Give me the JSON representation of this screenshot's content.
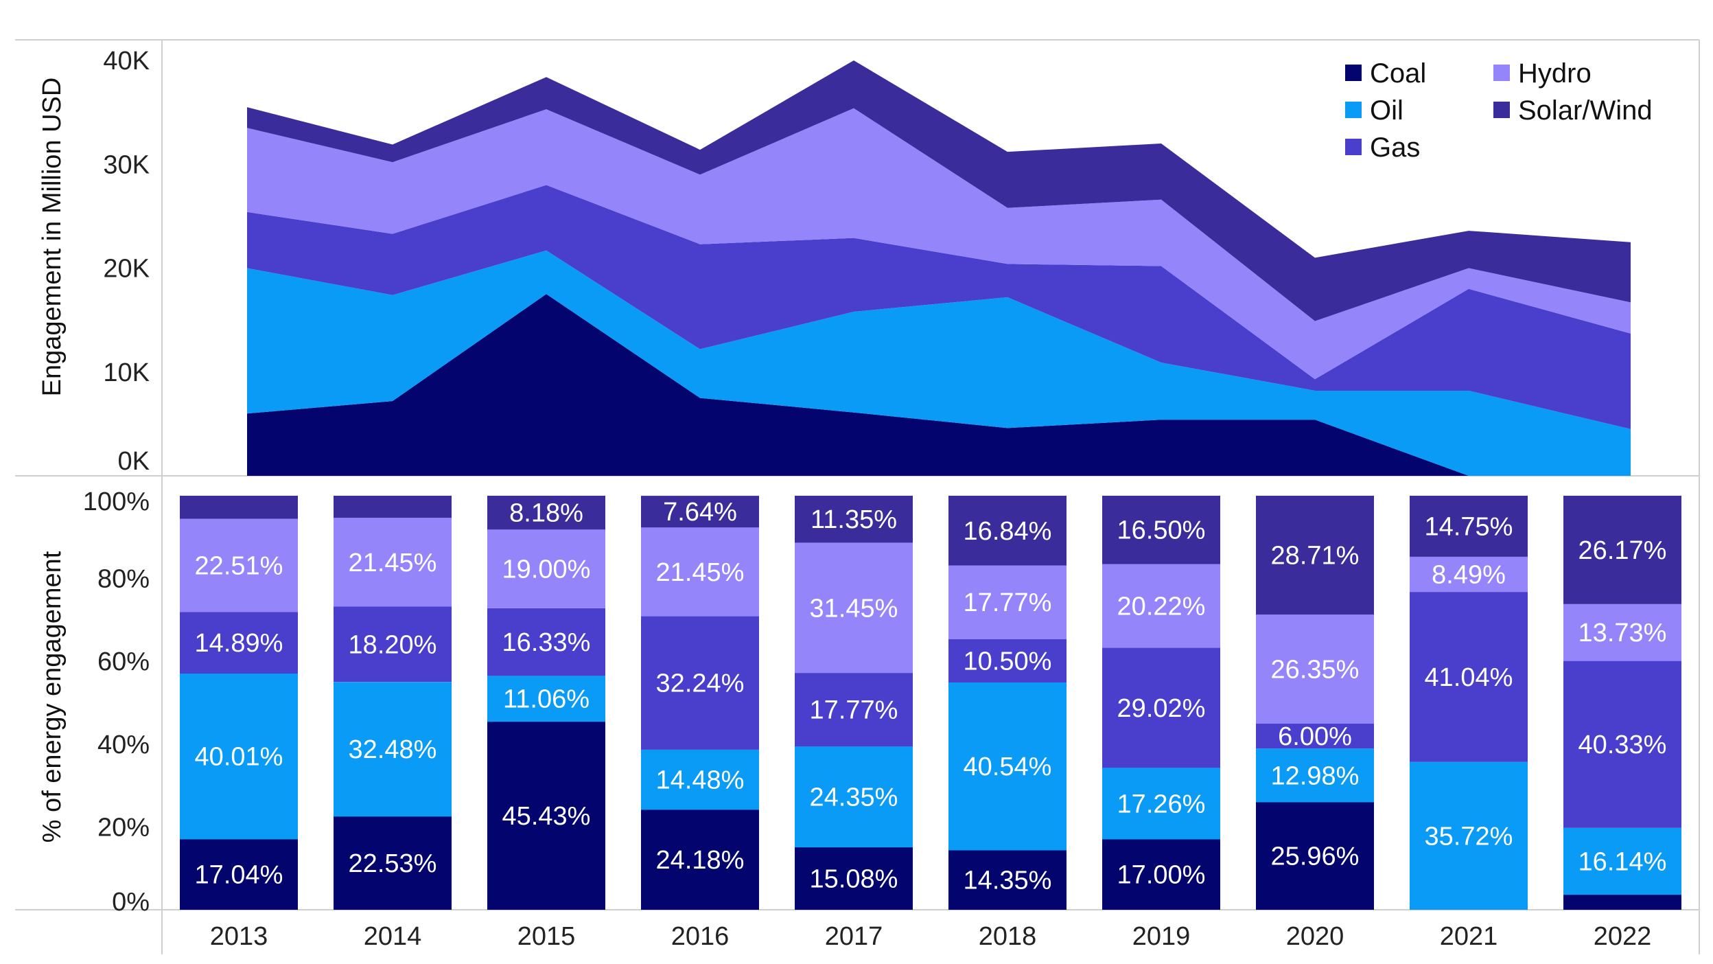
{
  "chart_data": [
    {
      "type": "area",
      "stacked": true,
      "ylabel": "Engagement in Million USD",
      "yticks": [
        "0K",
        "10K",
        "20K",
        "30K",
        "40K"
      ],
      "ylim": [
        0,
        40000
      ],
      "x": [
        "2013",
        "2014",
        "2015",
        "2016",
        "2017",
        "2018",
        "2019",
        "2020",
        "2021",
        "2022"
      ],
      "series": [
        {
          "name": "Coal",
          "values": [
            6000,
            7200,
            17500,
            7500,
            6100,
            4600,
            5400,
            5400,
            0,
            0
          ]
        },
        {
          "name": "Oil",
          "values": [
            14000,
            10200,
            4200,
            4700,
            9700,
            12600,
            5500,
            2800,
            8200,
            4500
          ]
        },
        {
          "name": "Gas",
          "values": [
            5400,
            5900,
            6300,
            10100,
            7100,
            3200,
            9300,
            1100,
            9800,
            9200
          ]
        },
        {
          "name": "Hydro",
          "values": [
            8100,
            6900,
            7300,
            6700,
            12500,
            5400,
            6400,
            5600,
            2000,
            3000
          ]
        },
        {
          "name": "Solar/Wind",
          "values": [
            2000,
            1700,
            3100,
            2400,
            4600,
            5400,
            5400,
            6100,
            3600,
            5800
          ]
        }
      ],
      "legend": {
        "position": "top-right",
        "entries": [
          "Coal",
          "Oil",
          "Gas",
          "Hydro",
          "Solar/Wind"
        ]
      }
    },
    {
      "type": "bar",
      "stacked": true,
      "ylabel": "% of energy engagement",
      "yticks": [
        "0%",
        "20%",
        "40%",
        "60%",
        "80%",
        "100%"
      ],
      "ylim": [
        0,
        100
      ],
      "categories": [
        "2013",
        "2014",
        "2015",
        "2016",
        "2017",
        "2018",
        "2019",
        "2020",
        "2021",
        "2022"
      ],
      "series": [
        {
          "name": "Coal",
          "values": [
            17.04,
            22.53,
            45.43,
            24.18,
            15.08,
            14.35,
            17.0,
            25.96,
            0,
            3.63
          ],
          "labels": [
            "17.04%",
            "22.53%",
            "45.43%",
            "24.18%",
            "15.08%",
            "14.35%",
            "17.00%",
            "25.96%",
            "",
            ""
          ]
        },
        {
          "name": "Oil",
          "values": [
            40.01,
            32.48,
            11.06,
            14.48,
            24.35,
            40.54,
            17.26,
            12.98,
            35.72,
            16.14
          ],
          "labels": [
            "40.01%",
            "32.48%",
            "11.06%",
            "14.48%",
            "24.35%",
            "40.54%",
            "17.26%",
            "12.98%",
            "35.72%",
            "16.14%"
          ]
        },
        {
          "name": "Gas",
          "values": [
            14.89,
            18.2,
            16.33,
            32.24,
            17.77,
            10.5,
            29.02,
            6.0,
            41.04,
            40.33
          ],
          "labels": [
            "14.89%",
            "18.20%",
            "16.33%",
            "32.24%",
            "17.77%",
            "10.50%",
            "29.02%",
            "6.00%",
            "41.04%",
            "40.33%"
          ]
        },
        {
          "name": "Hydro",
          "values": [
            22.51,
            21.45,
            19.0,
            21.45,
            31.45,
            17.77,
            20.22,
            26.35,
            8.49,
            13.73
          ],
          "labels": [
            "22.51%",
            "21.45%",
            "19.00%",
            "21.45%",
            "31.45%",
            "17.77%",
            "20.22%",
            "26.35%",
            "8.49%",
            "13.73%"
          ]
        },
        {
          "name": "Solar/Wind",
          "values": [
            5.55,
            5.34,
            8.18,
            7.64,
            11.35,
            16.84,
            16.5,
            28.71,
            14.75,
            26.17
          ],
          "labels": [
            "",
            "",
            "8.18%",
            "7.64%",
            "11.35%",
            "16.84%",
            "16.50%",
            "28.71%",
            "14.75%",
            "26.17%"
          ]
        }
      ]
    }
  ],
  "colors": {
    "Coal": "#03046e",
    "Oil": "#0a9bf7",
    "Gas": "#4a3fcd",
    "Hydro": "#9585fb",
    "Solar/Wind": "#3a2d9b",
    "grid": "#cfcfcf",
    "text": "#222222"
  }
}
